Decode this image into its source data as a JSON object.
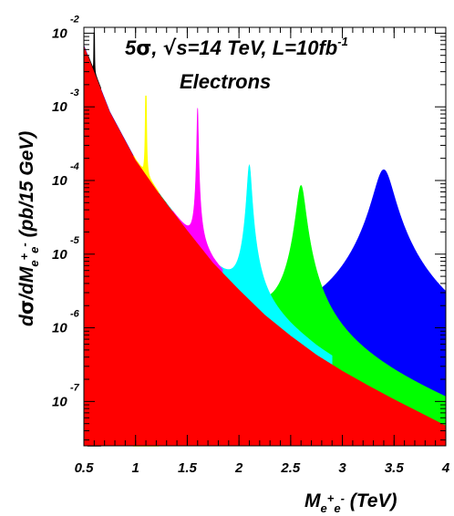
{
  "chart_data": {
    "type": "area",
    "title": {
      "line1": {
        "pre": "5",
        "sigma": "σ",
        "mid": ", ",
        "sqrt": "√",
        "post": "s=14 TeV, L=10fb",
        "sup": "-1"
      },
      "line2": "Electrons"
    },
    "xlabel": {
      "main": "M",
      "sub1": "e",
      "sup1": "+",
      "sub2": "e",
      "sup2": "-",
      "unit": " (TeV)"
    },
    "ylabel": {
      "d": "d",
      "sigma": "σ",
      "slash": "/dM",
      "sub1": "e",
      "sup1": "+",
      "sub2": "e",
      "sup2": "-",
      "unit": " (pb/15 GeV)"
    },
    "xlim": [
      0.5,
      4.0
    ],
    "ylim": [
      2.5e-08,
      0.012
    ],
    "yscale": "log",
    "grid": false,
    "xticks": [
      {
        "value": 0.5,
        "label": "0.5"
      },
      {
        "value": 1.0,
        "label": "1"
      },
      {
        "value": 1.5,
        "label": "1.5"
      },
      {
        "value": 2.0,
        "label": "2"
      },
      {
        "value": 2.5,
        "label": "2.5"
      },
      {
        "value": 3.0,
        "label": "3"
      },
      {
        "value": 3.5,
        "label": "3.5"
      },
      {
        "value": 4.0,
        "label": "4"
      }
    ],
    "yticks": [
      {
        "value": 0.01,
        "base": "10",
        "exp": "-2"
      },
      {
        "value": 0.001,
        "base": "10",
        "exp": "-3"
      },
      {
        "value": 0.0001,
        "base": "10",
        "exp": "-4"
      },
      {
        "value": 1e-05,
        "base": "10",
        "exp": "-5"
      },
      {
        "value": 1e-06,
        "base": "10",
        "exp": "-6"
      },
      {
        "value": 1e-07,
        "base": "10",
        "exp": "-7"
      }
    ],
    "background": {
      "color": "#ff0000",
      "x": [
        0.5,
        0.75,
        1.0,
        1.25,
        1.5,
        1.75,
        2.0,
        2.25,
        2.5,
        2.75,
        3.0,
        3.25,
        3.5,
        3.75,
        4.0
      ],
      "y": [
        0.0068,
        0.00086,
        0.00019,
        6e-05,
        2.1e-05,
        7.6e-06,
        3.3e-06,
        1.5e-06,
        7.8e-07,
        4.3e-07,
        2.6e-07,
        1.65e-07,
        1.07e-07,
        7.1e-08,
        4.7e-08
      ]
    },
    "resonances": [
      {
        "color": "#000000",
        "mass": 0.6,
        "peak": 0.0072,
        "width": 0.0015
      },
      {
        "color": "#ffff00",
        "mass": 1.1,
        "peak": 0.0013,
        "width": 0.003
      },
      {
        "color": "#ff00ff",
        "mass": 1.6,
        "peak": 0.00095,
        "width": 0.006
      },
      {
        "color": "#00ffff",
        "mass": 2.1,
        "peak": 0.00016,
        "width": 0.02
      },
      {
        "color": "#00ff00",
        "mass": 2.6,
        "peak": 8.5e-05,
        "width": 0.04
      },
      {
        "color": "#0000ff",
        "mass": 3.4,
        "peak": 0.00014,
        "width": 0.09
      }
    ]
  }
}
